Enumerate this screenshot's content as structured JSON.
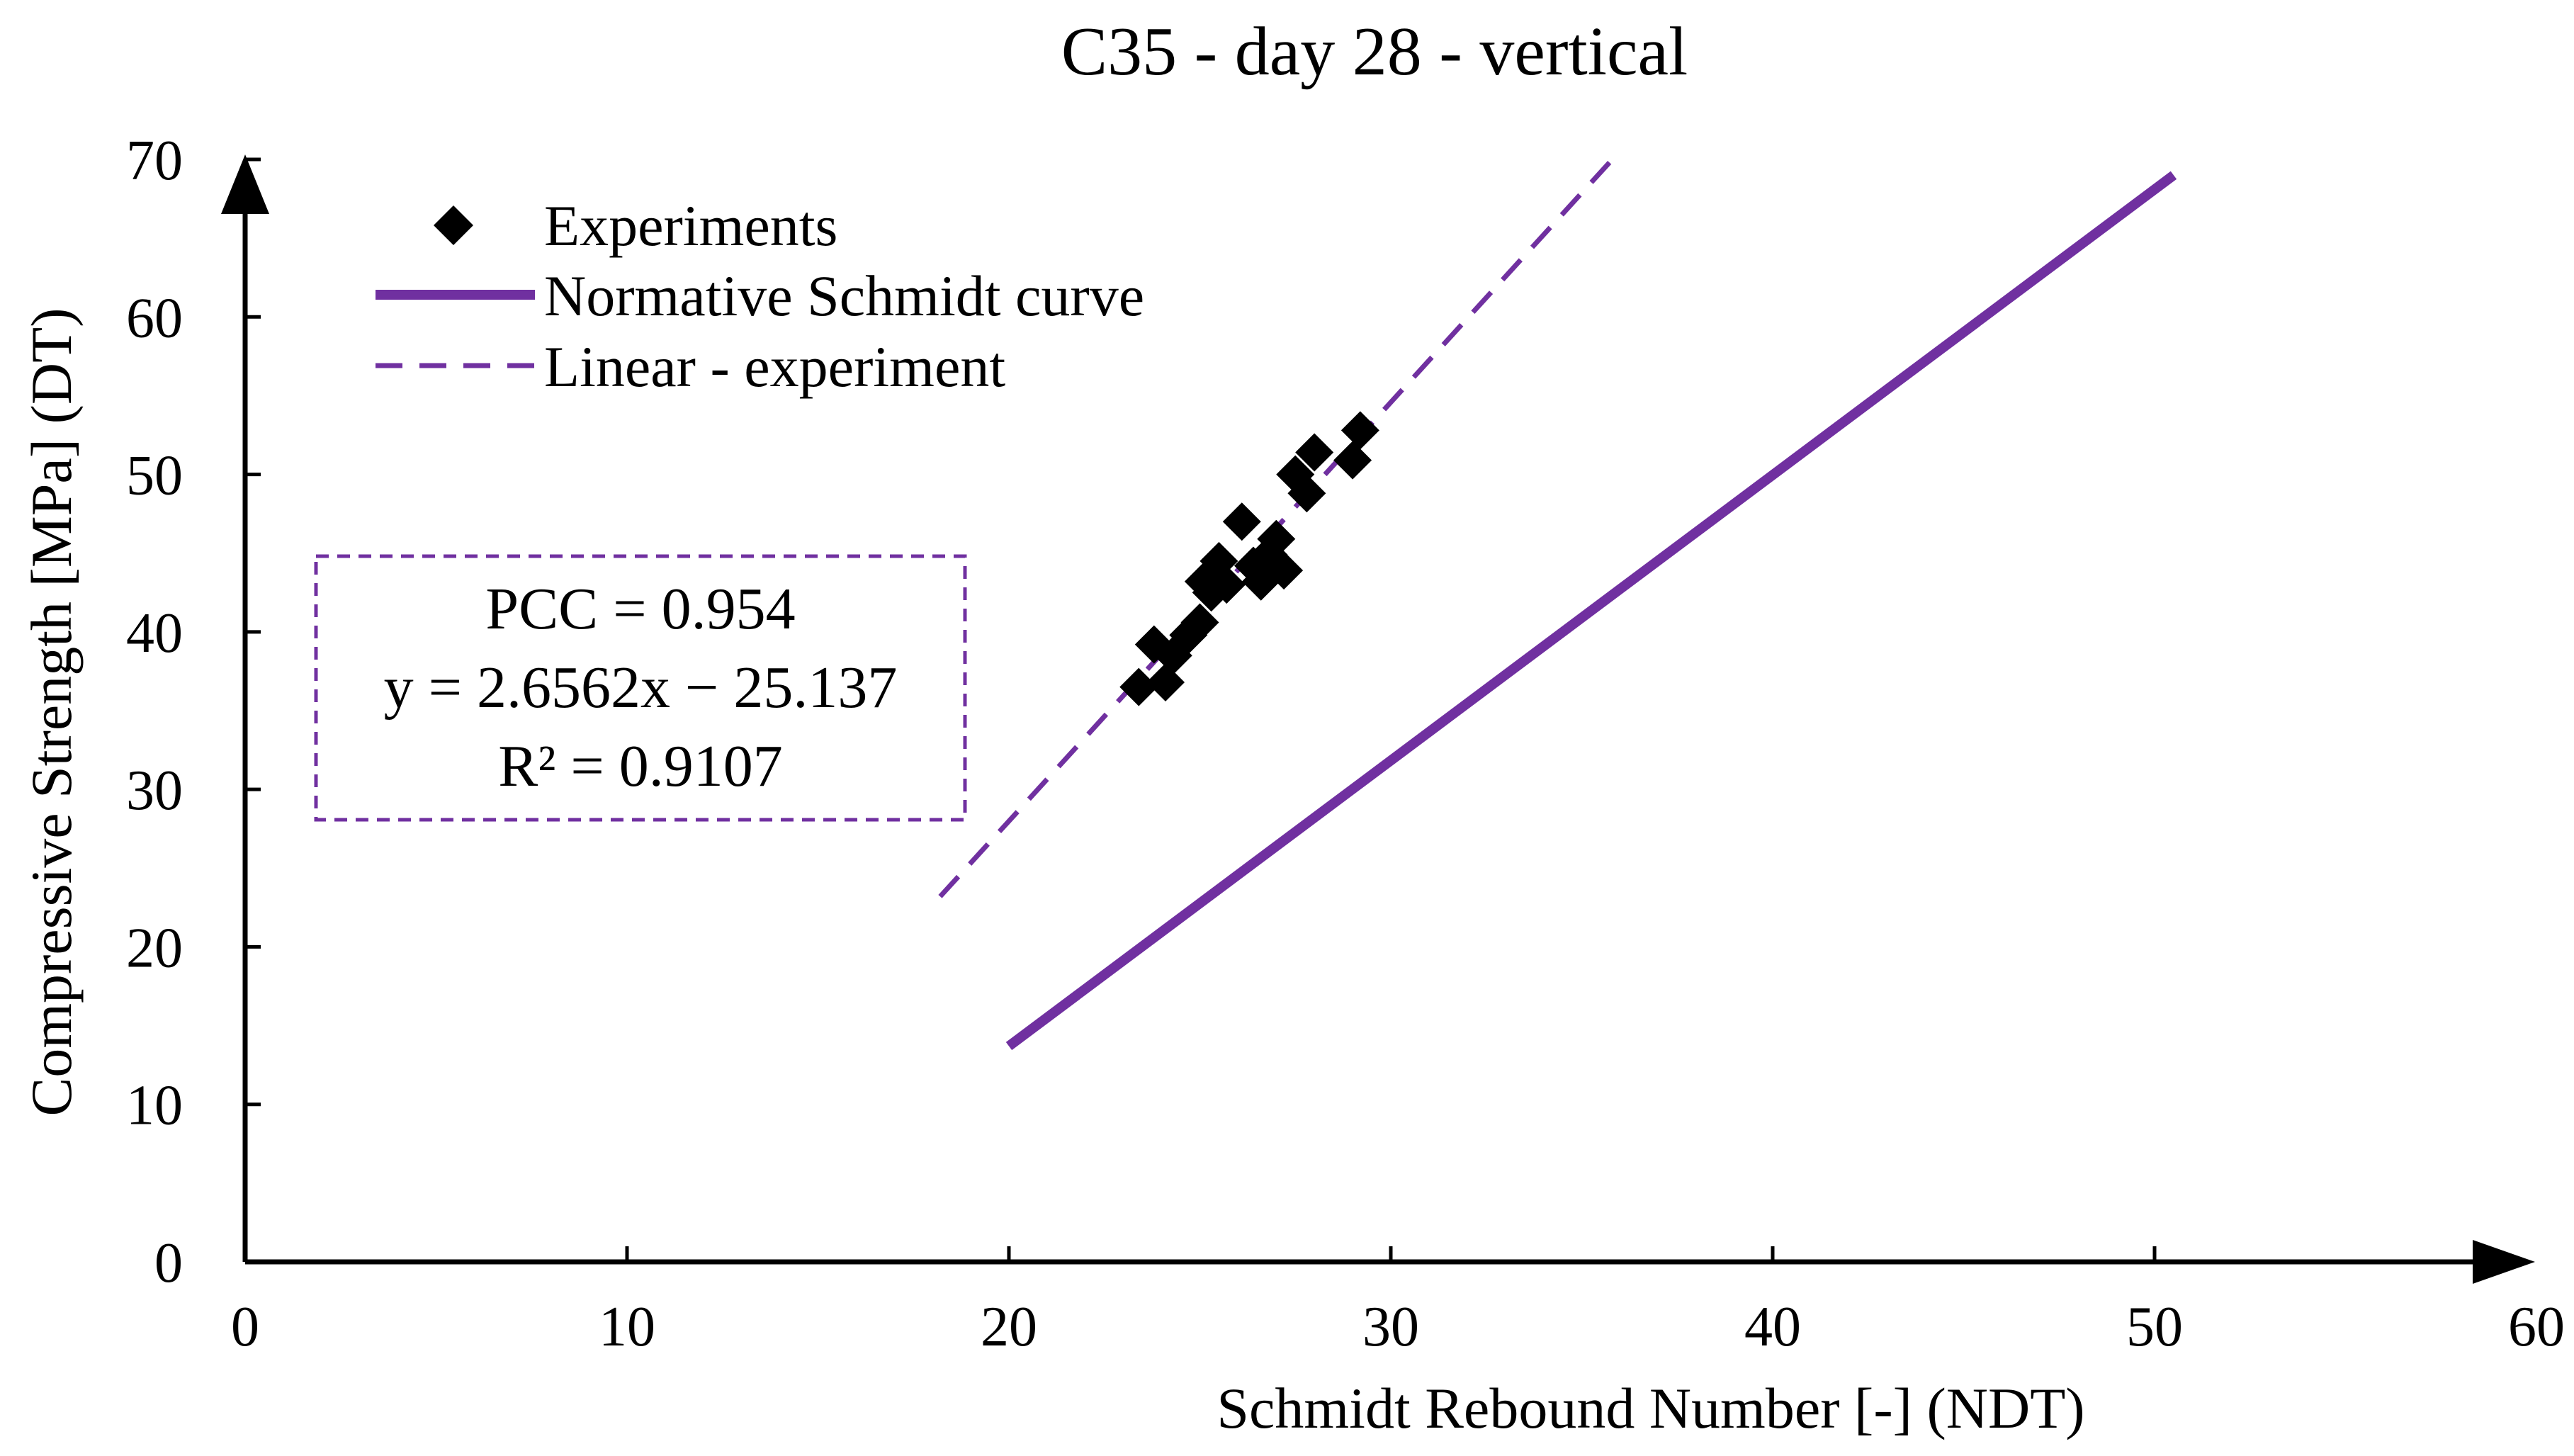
{
  "chart_data": {
    "type": "scatter",
    "title": "C35 - day 28 - vertical",
    "xlabel": "Schmidt Rebound Number [-] (NDT)",
    "ylabel": "Compressive Strength [MPa] (DT)",
    "xlim": [
      0,
      60
    ],
    "ylim": [
      0,
      70
    ],
    "x_ticks": [
      "0",
      "10",
      "20",
      "30",
      "40",
      "50",
      "60"
    ],
    "y_ticks": [
      "0",
      "10",
      "20",
      "30",
      "40",
      "50",
      "60",
      "70"
    ],
    "grid": false,
    "legend_position": "top-left",
    "colors": {
      "accent": "#7030A0",
      "points": "#000000"
    },
    "series": [
      {
        "name": "Experiments",
        "kind": "scatter",
        "marker": "diamond",
        "x": [
          23.4,
          23.8,
          24.1,
          24.3,
          24.7,
          25.0,
          25.1,
          25.3,
          25.5,
          25.7,
          26.1,
          26.4,
          26.6,
          26.8,
          27.0,
          27.2,
          27.5,
          27.8,
          28.0,
          29.0,
          29.2
        ],
        "y": [
          36.5,
          39.2,
          36.8,
          38.5,
          39.8,
          40.6,
          43.2,
          42.5,
          44.5,
          43.0,
          47.0,
          44.2,
          43.2,
          44.9,
          45.9,
          43.9,
          50.0,
          48.8,
          51.4,
          50.9,
          52.8
        ]
      },
      {
        "name": "Normative Schmidt curve",
        "kind": "line",
        "style": "solid",
        "x": [
          20,
          50.5
        ],
        "y": [
          13.7,
          69.0
        ]
      },
      {
        "name": "Linear - experiment",
        "kind": "line",
        "style": "dashed",
        "x": [
          18.2,
          35.8
        ],
        "y": [
          23.2,
          70.0
        ]
      }
    ],
    "annotation": {
      "pcc": "PCC = 0.954",
      "equation": "y = 2.6562x − 25.137",
      "r2": "R² = 0.9107"
    }
  }
}
